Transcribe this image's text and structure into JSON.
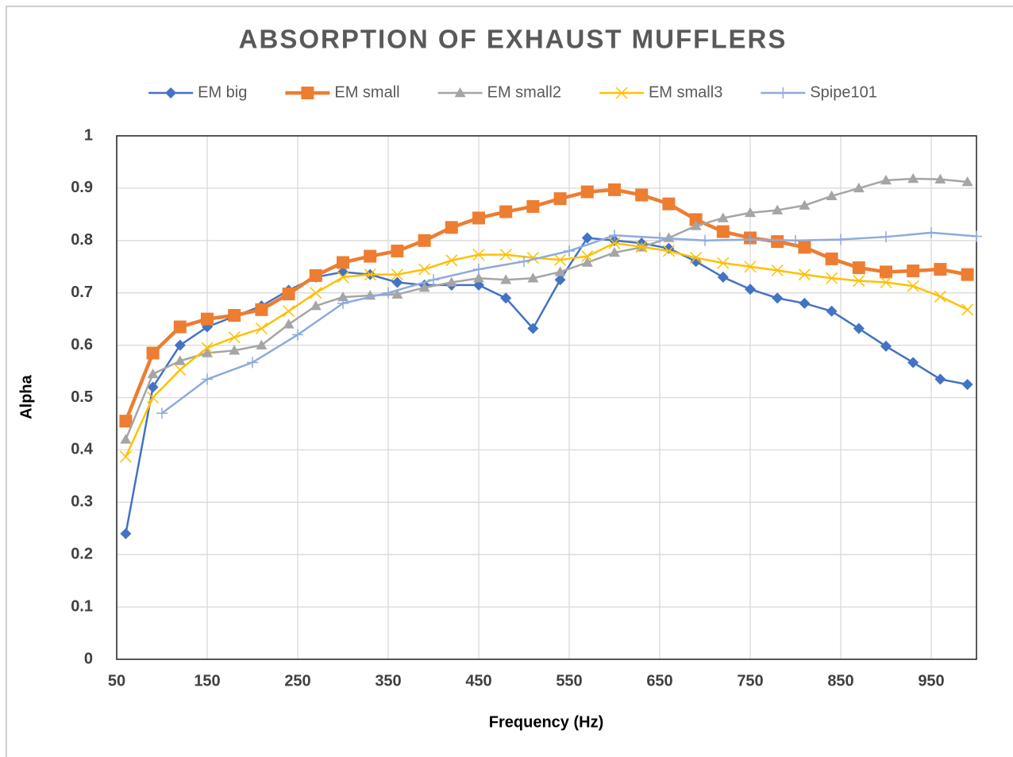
{
  "chart_data": {
    "type": "line",
    "title": "ABSORPTION OF EXHAUST MUFFLERS",
    "xlabel": "Frequency (Hz)",
    "ylabel": "Alpha",
    "xlim": [
      50,
      1000
    ],
    "xticks": [
      50,
      150,
      250,
      350,
      450,
      550,
      650,
      750,
      850,
      950
    ],
    "ylim": [
      0,
      1
    ],
    "yticks": [
      0,
      0.1,
      0.2,
      0.3,
      0.4,
      0.5,
      0.6,
      0.7,
      0.8,
      0.9,
      1
    ],
    "grid": true,
    "legend": "top",
    "series": [
      {
        "name": "EM big",
        "color": "#4472c4",
        "marker": "diamond",
        "x": [
          60,
          90,
          120,
          150,
          180,
          210,
          240,
          270,
          300,
          330,
          360,
          390,
          420,
          450,
          480,
          510,
          540,
          570,
          600,
          630,
          660,
          690,
          720,
          750,
          780,
          810,
          840,
          870,
          900,
          930,
          960,
          990
        ],
        "values": [
          0.24,
          0.52,
          0.6,
          0.635,
          0.655,
          0.675,
          0.705,
          0.73,
          0.74,
          0.735,
          0.72,
          0.715,
          0.715,
          0.715,
          0.69,
          0.632,
          0.725,
          0.805,
          0.8,
          0.795,
          0.785,
          0.76,
          0.73,
          0.707,
          0.69,
          0.68,
          0.665,
          0.632,
          0.598,
          0.567,
          0.535,
          0.525
        ]
      },
      {
        "name": "EM small",
        "color": "#ed7d31",
        "marker": "square",
        "x": [
          60,
          90,
          120,
          150,
          180,
          210,
          240,
          270,
          300,
          330,
          360,
          390,
          420,
          450,
          480,
          510,
          540,
          570,
          600,
          630,
          660,
          690,
          720,
          750,
          780,
          810,
          840,
          870,
          900,
          930,
          960,
          990
        ],
        "values": [
          0.455,
          0.585,
          0.635,
          0.65,
          0.657,
          0.668,
          0.698,
          0.733,
          0.758,
          0.77,
          0.78,
          0.8,
          0.825,
          0.843,
          0.855,
          0.865,
          0.88,
          0.893,
          0.897,
          0.887,
          0.87,
          0.84,
          0.817,
          0.805,
          0.798,
          0.787,
          0.765,
          0.748,
          0.74,
          0.742,
          0.745,
          0.735
        ]
      },
      {
        "name": "EM small2",
        "color": "#a5a5a5",
        "marker": "triangle",
        "x": [
          60,
          90,
          120,
          150,
          180,
          210,
          240,
          270,
          300,
          330,
          360,
          390,
          420,
          450,
          480,
          510,
          540,
          570,
          600,
          630,
          660,
          690,
          720,
          750,
          780,
          810,
          840,
          870,
          900,
          930,
          960,
          990
        ],
        "values": [
          0.42,
          0.545,
          0.57,
          0.585,
          0.59,
          0.6,
          0.64,
          0.675,
          0.692,
          0.695,
          0.697,
          0.71,
          0.72,
          0.728,
          0.725,
          0.728,
          0.74,
          0.758,
          0.777,
          0.787,
          0.805,
          0.828,
          0.843,
          0.853,
          0.858,
          0.867,
          0.885,
          0.9,
          0.915,
          0.918,
          0.917,
          0.912
        ]
      },
      {
        "name": "EM small3",
        "color": "#ffc000",
        "marker": "x",
        "x": [
          60,
          90,
          120,
          150,
          180,
          210,
          240,
          270,
          300,
          330,
          360,
          390,
          420,
          450,
          480,
          510,
          540,
          570,
          600,
          630,
          660,
          690,
          720,
          750,
          780,
          810,
          840,
          870,
          900,
          930,
          960,
          990
        ],
        "values": [
          0.387,
          0.5,
          0.553,
          0.595,
          0.615,
          0.632,
          0.665,
          0.7,
          0.73,
          0.735,
          0.735,
          0.745,
          0.762,
          0.773,
          0.773,
          0.767,
          0.763,
          0.77,
          0.795,
          0.788,
          0.78,
          0.767,
          0.757,
          0.75,
          0.743,
          0.735,
          0.728,
          0.723,
          0.72,
          0.713,
          0.693,
          0.668
        ]
      },
      {
        "name": "Spipe101",
        "color": "#8faadc",
        "marker": "plus",
        "x": [
          100,
          150,
          200,
          250,
          300,
          350,
          400,
          450,
          500,
          550,
          600,
          650,
          700,
          750,
          800,
          850,
          900,
          950,
          1000
        ],
        "values": [
          0.47,
          0.535,
          0.567,
          0.62,
          0.68,
          0.7,
          0.725,
          0.745,
          0.76,
          0.78,
          0.81,
          0.805,
          0.8,
          0.802,
          0.8,
          0.802,
          0.807,
          0.815,
          0.808
        ]
      }
    ]
  }
}
